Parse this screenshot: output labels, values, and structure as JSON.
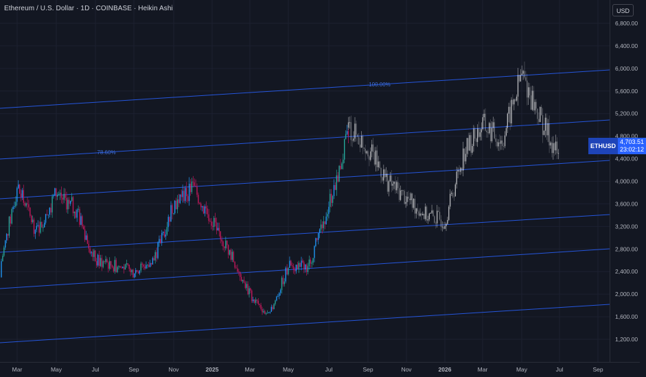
{
  "header": {
    "title": "Ethereum / U.S. Dollar · 1D · COINBASE · Heikin Ashi",
    "currency": "USD"
  },
  "price_tag": {
    "symbol": "ETHUSD",
    "price": "4,703.51",
    "countdown": "23:02:12"
  },
  "colors": {
    "background": "#131722",
    "up_candle": "#26a69a",
    "up_candle_alt": "#2196f3",
    "down_candle": "#c2185b",
    "projection": "#ffffff",
    "channel_line": "#2962ff",
    "fib_label": "#3f6fd8",
    "axis_text": "#b2b5be"
  },
  "chart_data": {
    "type": "candlestick",
    "style": "Heikin Ashi",
    "symbol": "ETHUSD",
    "interval": "1D",
    "ylim": [
      1000,
      7000
    ],
    "y_ticks": [
      "1,200.00",
      "1,600.00",
      "2,000.00",
      "2,400.00",
      "2,800.00",
      "3,200.00",
      "3,600.00",
      "4,000.00",
      "4,400.00",
      "4,800.00",
      "5,200.00",
      "5,600.00",
      "6,000.00",
      "6,400.00",
      "6,800.00"
    ],
    "x_ticks": [
      "Mar",
      "May",
      "Jul",
      "Sep",
      "Nov",
      "2025",
      "Mar",
      "May",
      "Jul",
      "Sep",
      "Nov",
      "2026",
      "Mar",
      "May",
      "Jul",
      "Sep"
    ],
    "fib_labels": [
      "100.00%",
      "78.60%"
    ],
    "series": [
      {
        "name": "price",
        "x": [
          "2024-02",
          "2024-03",
          "2024-04",
          "2024-05",
          "2024-06",
          "2024-07",
          "2024-08",
          "2024-09",
          "2024-10",
          "2024-11",
          "2024-12",
          "2025-01",
          "2025-02",
          "2025-03",
          "2025-04",
          "2025-05",
          "2025-06",
          "2025-07",
          "2025-08"
        ],
        "close": [
          2300,
          3900,
          3100,
          3800,
          3500,
          2600,
          2500,
          2400,
          2600,
          3600,
          3900,
          3300,
          2700,
          2000,
          1600,
          2500,
          2500,
          3600,
          4800
        ]
      },
      {
        "name": "projection",
        "x": [
          "2025-08",
          "2025-09",
          "2025-10",
          "2025-11",
          "2025-12",
          "2026-01",
          "2026-02",
          "2026-03",
          "2026-04",
          "2026-05",
          "2026-06",
          "2026-07"
        ],
        "close": [
          4950,
          4600,
          4000,
          3700,
          3400,
          3300,
          4500,
          5000,
          4700,
          5900,
          5100,
          4400
        ]
      }
    ]
  }
}
